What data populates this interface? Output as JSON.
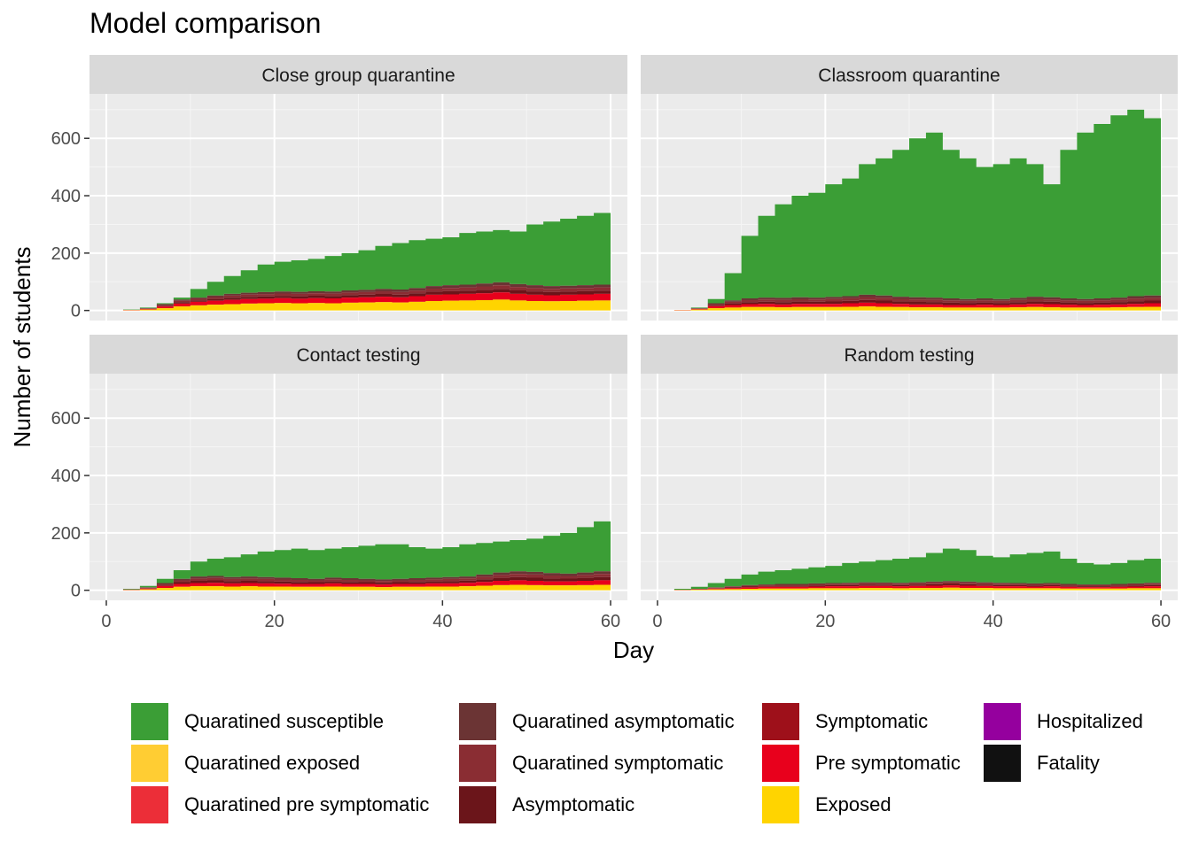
{
  "chart_data": {
    "type": "area",
    "title": "Model comparison",
    "xlabel": "Day",
    "ylabel": "Number of students",
    "xlim": [
      -2,
      62
    ],
    "ylim": [
      -35,
      755
    ],
    "x_ticks": [
      0,
      20,
      40,
      60
    ],
    "y_ticks": [
      0,
      200,
      400,
      600
    ],
    "grid": true,
    "legend_position": "bottom",
    "categories_stacking_order": [
      "Exposed",
      "Pre symptomatic",
      "Symptomatic",
      "Asymptomatic",
      "Quaratined pre symptomatic",
      "Quaratined exposed",
      "Quaratined symptomatic",
      "Quaratined asymptomatic",
      "Hospitalized",
      "Fatality",
      "Quaratined susceptible"
    ],
    "legend": [
      {
        "name": "Quaratined susceptible",
        "color": "#3B9E36"
      },
      {
        "name": "Quaratined exposed",
        "color": "#FFCD33"
      },
      {
        "name": "Quaratined pre symptomatic",
        "color": "#EC2E38"
      },
      {
        "name": "Quaratined asymptomatic",
        "color": "#6B3434"
      },
      {
        "name": "Quaratined symptomatic",
        "color": "#8A2D33"
      },
      {
        "name": "Asymptomatic",
        "color": "#6B151A"
      },
      {
        "name": "Symptomatic",
        "color": "#9E101A"
      },
      {
        "name": "Pre symptomatic",
        "color": "#E8001C"
      },
      {
        "name": "Exposed",
        "color": "#FFD400"
      },
      {
        "name": "Hospitalized",
        "color": "#95009E"
      },
      {
        "name": "Fatality",
        "color": "#111111"
      }
    ],
    "panels": [
      {
        "name": "Close group quarantine",
        "x": [
          0,
          2,
          4,
          6,
          8,
          10,
          12,
          14,
          16,
          18,
          20,
          22,
          24,
          26,
          28,
          30,
          32,
          34,
          36,
          38,
          40,
          42,
          44,
          46,
          48,
          50,
          52,
          54,
          56,
          58,
          60
        ],
        "infected_total": [
          0,
          2,
          8,
          22,
          38,
          45,
          52,
          58,
          62,
          64,
          66,
          65,
          67,
          66,
          70,
          72,
          75,
          73,
          78,
          85,
          88,
          90,
          94,
          98,
          92,
          88,
          85,
          86,
          88,
          90,
          94
        ],
        "exposed": [
          0,
          1,
          3,
          8,
          14,
          18,
          20,
          22,
          24,
          25,
          26,
          25,
          26,
          25,
          27,
          28,
          29,
          28,
          30,
          33,
          34,
          35,
          36,
          38,
          35,
          33,
          32,
          33,
          34,
          35,
          36
        ],
        "pre_symptomatic": [
          0,
          1,
          2,
          6,
          10,
          12,
          14,
          15,
          16,
          16,
          17,
          16,
          17,
          17,
          18,
          18,
          19,
          18,
          20,
          22,
          22,
          23,
          24,
          25,
          23,
          22,
          21,
          22,
          22,
          23,
          24
        ],
        "total": [
          0,
          3,
          10,
          25,
          45,
          75,
          100,
          120,
          140,
          160,
          170,
          175,
          180,
          190,
          200,
          210,
          225,
          235,
          245,
          250,
          255,
          270,
          275,
          280,
          275,
          300,
          310,
          320,
          330,
          340,
          340
        ]
      },
      {
        "name": "Classroom quarantine",
        "x": [
          0,
          2,
          4,
          6,
          8,
          10,
          12,
          14,
          16,
          18,
          20,
          22,
          24,
          26,
          28,
          30,
          32,
          34,
          36,
          38,
          40,
          42,
          44,
          46,
          48,
          50,
          52,
          54,
          56,
          58,
          60
        ],
        "infected_total": [
          0,
          2,
          8,
          25,
          35,
          42,
          45,
          44,
          46,
          45,
          47,
          50,
          55,
          52,
          48,
          46,
          45,
          42,
          40,
          42,
          40,
          44,
          48,
          46,
          42,
          40,
          42,
          45,
          50,
          52,
          54
        ],
        "exposed": [
          0,
          1,
          3,
          8,
          10,
          12,
          12,
          11,
          12,
          12,
          12,
          13,
          14,
          13,
          12,
          11,
          11,
          10,
          10,
          10,
          10,
          11,
          12,
          11,
          10,
          10,
          10,
          11,
          12,
          13,
          14
        ],
        "pre_symptomatic": [
          0,
          1,
          2,
          7,
          9,
          10,
          11,
          10,
          11,
          11,
          11,
          12,
          13,
          12,
          11,
          10,
          10,
          9,
          9,
          10,
          9,
          10,
          11,
          11,
          10,
          9,
          10,
          10,
          11,
          12,
          12
        ],
        "total": [
          0,
          2,
          10,
          40,
          130,
          260,
          330,
          370,
          400,
          410,
          440,
          460,
          510,
          530,
          560,
          600,
          620,
          560,
          530,
          500,
          510,
          530,
          510,
          440,
          560,
          620,
          650,
          680,
          700,
          670,
          680
        ]
      },
      {
        "name": "Contact testing",
        "x": [
          0,
          2,
          4,
          6,
          8,
          10,
          12,
          14,
          16,
          18,
          20,
          22,
          24,
          26,
          28,
          30,
          32,
          34,
          36,
          38,
          40,
          42,
          44,
          46,
          48,
          50,
          52,
          54,
          56,
          58,
          60
        ],
        "infected_total": [
          0,
          3,
          10,
          25,
          40,
          48,
          50,
          46,
          48,
          46,
          44,
          42,
          40,
          44,
          42,
          40,
          38,
          40,
          42,
          44,
          46,
          48,
          55,
          62,
          66,
          64,
          60,
          58,
          62,
          66,
          68
        ],
        "exposed": [
          0,
          1,
          3,
          8,
          12,
          14,
          14,
          13,
          14,
          13,
          13,
          12,
          12,
          13,
          12,
          12,
          11,
          12,
          12,
          13,
          13,
          14,
          16,
          18,
          19,
          18,
          17,
          17,
          18,
          19,
          20
        ],
        "pre_symptomatic": [
          0,
          1,
          3,
          7,
          10,
          11,
          12,
          11,
          11,
          11,
          10,
          10,
          10,
          11,
          10,
          10,
          9,
          10,
          10,
          11,
          11,
          12,
          13,
          15,
          16,
          15,
          14,
          14,
          15,
          16,
          16
        ],
        "total": [
          0,
          5,
          15,
          40,
          70,
          100,
          110,
          115,
          125,
          135,
          140,
          145,
          140,
          145,
          150,
          155,
          160,
          160,
          150,
          145,
          150,
          160,
          165,
          170,
          175,
          180,
          190,
          200,
          220,
          240,
          250
        ]
      },
      {
        "name": "Random testing",
        "x": [
          0,
          2,
          4,
          6,
          8,
          10,
          12,
          14,
          16,
          18,
          20,
          22,
          24,
          26,
          28,
          30,
          32,
          34,
          36,
          38,
          40,
          42,
          44,
          46,
          48,
          50,
          52,
          54,
          56,
          58,
          60
        ],
        "infected_total": [
          0,
          2,
          5,
          10,
          14,
          18,
          20,
          22,
          22,
          24,
          25,
          26,
          28,
          27,
          26,
          28,
          30,
          32,
          30,
          28,
          26,
          25,
          24,
          25,
          22,
          20,
          20,
          22,
          24,
          26,
          26
        ],
        "exposed": [
          0,
          1,
          2,
          3,
          4,
          5,
          6,
          6,
          6,
          7,
          7,
          7,
          8,
          8,
          7,
          8,
          8,
          9,
          8,
          8,
          7,
          7,
          7,
          7,
          6,
          6,
          6,
          6,
          7,
          7,
          7
        ],
        "pre_symptomatic": [
          0,
          1,
          1,
          3,
          4,
          5,
          6,
          6,
          6,
          6,
          7,
          7,
          7,
          7,
          7,
          7,
          8,
          8,
          8,
          7,
          7,
          7,
          6,
          7,
          6,
          5,
          5,
          6,
          6,
          7,
          7
        ],
        "total": [
          0,
          5,
          12,
          25,
          40,
          55,
          65,
          70,
          75,
          80,
          85,
          95,
          100,
          105,
          110,
          115,
          130,
          145,
          140,
          120,
          115,
          125,
          130,
          135,
          110,
          95,
          90,
          95,
          105,
          110,
          108
        ]
      }
    ]
  }
}
